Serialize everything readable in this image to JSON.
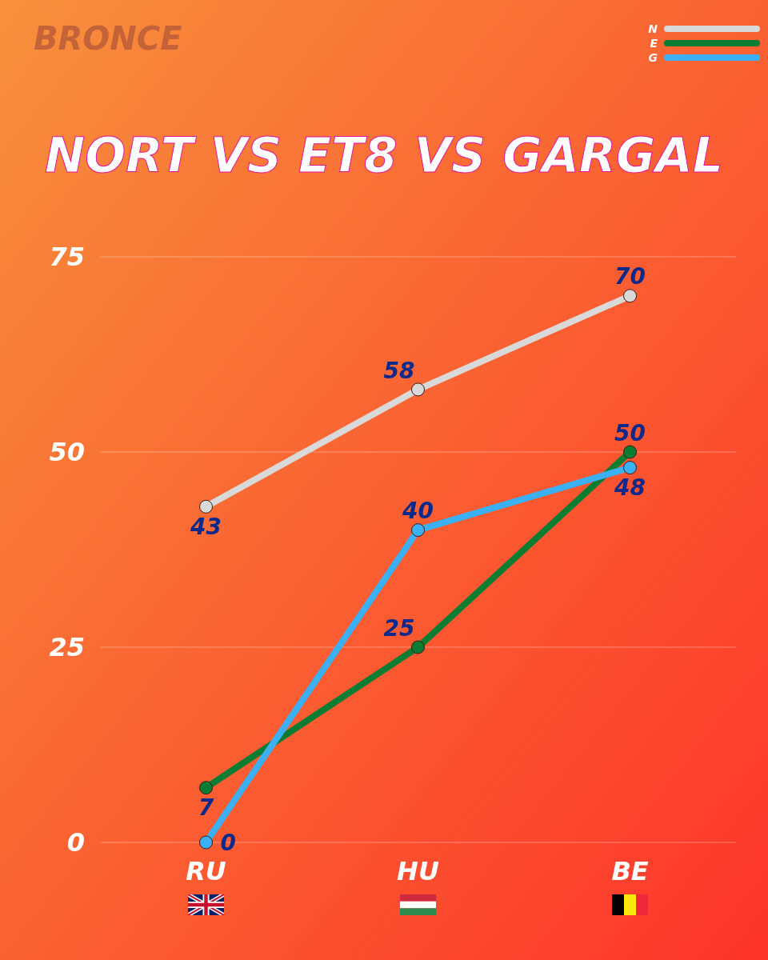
{
  "chart_data": {
    "type": "line",
    "title": "NORT VS ET8 VS GARGAL",
    "subtitle": "BRONCE",
    "categories": [
      "RU",
      "HU",
      "BE"
    ],
    "series": [
      {
        "name": "N",
        "color": "#d9d9d9",
        "values": [
          43,
          58,
          70
        ]
      },
      {
        "name": "E",
        "color": "#0b7d32",
        "values": [
          7,
          25,
          50
        ]
      },
      {
        "name": "G",
        "color": "#3bb0f5",
        "values": [
          0,
          40,
          48
        ]
      }
    ],
    "ylim": [
      0,
      75
    ],
    "yticks": [
      0,
      25,
      50,
      75
    ],
    "grid": "y",
    "legend": "top right",
    "marker": "circle",
    "data_labels": true
  }
}
